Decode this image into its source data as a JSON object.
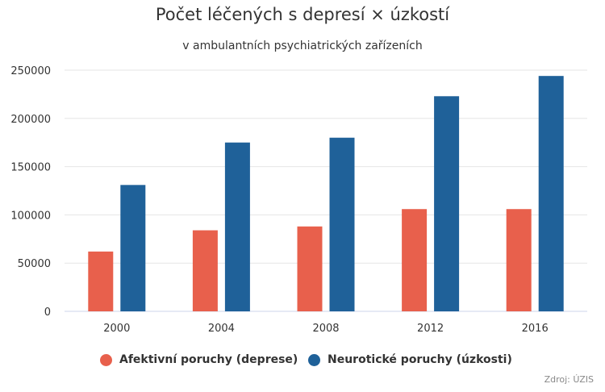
{
  "chart_data": {
    "type": "bar",
    "title": "Počet léčených s depresí × úzkostí",
    "subtitle": "v ambulantních psychiatrických zařízeních",
    "categories": [
      "2000",
      "2004",
      "2008",
      "2012",
      "2016"
    ],
    "series": [
      {
        "name": "Afektivní poruchy (deprese)",
        "color": "#e8604c",
        "values": [
          62000,
          84000,
          88000,
          106000,
          106000
        ]
      },
      {
        "name": "Neurotické poruchy (úzkosti)",
        "color": "#1f6199",
        "values": [
          131000,
          175000,
          180000,
          223000,
          244000
        ]
      }
    ],
    "ylim": [
      0,
      250000
    ],
    "yticks": [
      "0",
      "50000",
      "100000",
      "150000",
      "200000",
      "250000"
    ],
    "grid": true,
    "legend_position": "bottom",
    "credits": "Zdroj: ÚZIS"
  }
}
